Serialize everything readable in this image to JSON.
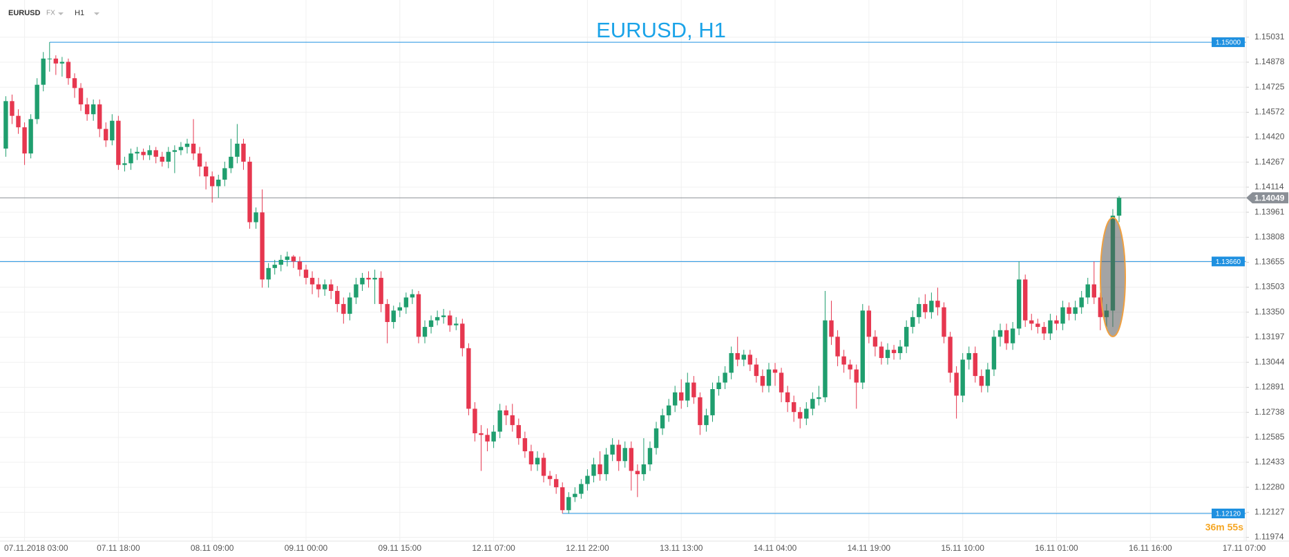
{
  "chart_data": {
    "type": "candlestick",
    "symbol": "EURUSD",
    "market": "FX",
    "timeframe": "H1",
    "title": "EURUSD, H1",
    "timer": "36m 55s",
    "up_color": "#1f9e6e",
    "down_color": "#e6374f",
    "level_color": "#1e90e0",
    "last_color": "#8a8f96",
    "categories": [
      null,
      null,
      null,
      "07.11.2018  03:00",
      null,
      null,
      null,
      null,
      null,
      null,
      null,
      null,
      null,
      null,
      null,
      null,
      null,
      null,
      "07.11  18:00",
      null,
      null,
      null,
      null,
      null,
      null,
      null,
      null,
      null,
      null,
      null,
      null,
      null,
      null,
      "08.11  09:00",
      null,
      null,
      null,
      null,
      null,
      null,
      null,
      null,
      null,
      null,
      null,
      null,
      null,
      null,
      "09.11  00:00",
      null,
      null,
      null,
      null,
      null,
      null,
      null,
      null,
      null,
      null,
      null,
      null,
      null,
      null,
      "09.11  15:00",
      null,
      null,
      null,
      null,
      null,
      null,
      null,
      null,
      null,
      null,
      null,
      null,
      null,
      null,
      "12.11  07:00",
      null,
      null,
      null,
      null,
      null,
      null,
      null,
      null,
      null,
      null,
      null,
      null,
      null,
      null,
      "12.11  22:00",
      null,
      null,
      null,
      null,
      null,
      null,
      null,
      null,
      null,
      null,
      null,
      null,
      null,
      null,
      "13.11  13:00",
      null,
      null,
      null,
      null,
      null,
      null,
      null,
      null,
      null,
      null,
      null,
      null,
      null,
      null,
      "14.11  04:00",
      null,
      null,
      null,
      null,
      null,
      null,
      null,
      null,
      null,
      null,
      null,
      null,
      null,
      null,
      "14.11  19:00",
      null,
      null,
      null,
      null,
      null,
      null,
      null,
      null,
      null,
      null,
      null,
      null,
      null,
      null,
      "15.11  10:00",
      null,
      null,
      null,
      null,
      null,
      null,
      null,
      null,
      null,
      null,
      null,
      null,
      null,
      null,
      "16.11  01:00",
      null,
      null,
      null,
      null,
      null,
      null,
      null,
      null,
      null,
      null,
      null,
      null,
      null,
      null,
      "16.11  16:00",
      null,
      null,
      null,
      null,
      null,
      null,
      null,
      null,
      null,
      null,
      null,
      null,
      null,
      null,
      "17.11  07:00"
    ],
    "open": [
      1.1435,
      1.1464,
      1.1455,
      1.1448,
      1.1432,
      1.1453,
      1.1474,
      1.149,
      1.149,
      1.1487,
      1.1488,
      1.1478,
      1.1472,
      1.1462,
      1.1456,
      1.1462,
      1.1447,
      1.144,
      1.1452,
      1.1425,
      1.1426,
      1.1432,
      1.1433,
      1.1431,
      1.1434,
      1.143,
      1.1427,
      1.1433,
      1.1434,
      1.1436,
      1.1438,
      1.1432,
      1.1424,
      1.1418,
      1.1412,
      1.1416,
      1.1423,
      1.143,
      1.1438,
      1.1427,
      1.139,
      1.1396,
      1.1355,
      1.1362,
      1.1364,
      1.1367,
      1.1369,
      1.1366,
      1.1361,
      1.1356,
      1.1352,
      1.1349,
      1.1352,
      1.1348,
      1.134,
      1.1334,
      1.1344,
      1.1352,
      1.1356,
      1.1355,
      1.1356,
      1.134,
      1.1329,
      1.1336,
      1.1338,
      1.1344,
      1.1346,
      1.132,
      1.1326,
      1.133,
      1.1332,
      1.1333,
      1.1327,
      1.1328,
      1.1313,
      1.1276,
      1.1261,
      1.126,
      1.1256,
      1.1262,
      1.1275,
      1.1272,
      1.1266,
      1.1258,
      1.125,
      1.1242,
      1.1246,
      1.1235,
      1.1233,
      1.1228,
      1.1214,
      1.1222,
      1.1224,
      1.123,
      1.1235,
      1.1242,
      1.1236,
      1.1248,
      1.1254,
      1.1244,
      1.1252,
      1.1238,
      1.1236,
      1.1242,
      1.1252,
      1.1264,
      1.1272,
      1.1278,
      1.1286,
      1.1281,
      1.1292,
      1.1283,
      1.1266,
      1.1272,
      1.1288,
      1.1292,
      1.1298,
      1.131,
      1.1306,
      1.1309,
      1.1303,
      1.1296,
      1.129,
      1.13,
      1.1298,
      1.1286,
      1.128,
      1.1274,
      1.127,
      1.1276,
      1.1282,
      1.1283,
      1.133,
      1.132,
      1.1308,
      1.1303,
      1.13,
      1.1292,
      1.1336,
      1.132,
      1.1314,
      1.1307,
      1.1312,
      1.131,
      1.1314,
      1.1326,
      1.1332,
      1.134,
      1.1335,
      1.1342,
      1.1338,
      1.132,
      1.1298,
      1.1284,
      1.1306,
      1.131,
      1.1296,
      1.129,
      1.13,
      1.132,
      1.1324,
      1.1316,
      1.1325,
      1.1355,
      1.133,
      1.1328,
      1.1326,
      1.1322,
      1.133,
      1.1328,
      1.1338,
      1.1334,
      1.1338,
      1.1344,
      1.1352,
      1.1344,
      1.1332,
      1.1336,
      1.1394,
      null,
      null,
      null,
      null,
      null,
      null,
      null,
      null,
      null,
      null,
      null,
      null,
      null,
      null,
      null,
      null,
      null,
      null,
      null,
      null
    ],
    "high": [
      1.1467,
      1.1468,
      1.1459,
      1.1451,
      1.1456,
      1.1478,
      1.1494,
      1.15,
      1.1492,
      1.1491,
      1.149,
      1.1481,
      1.1475,
      1.1466,
      1.1465,
      1.1465,
      1.1451,
      1.1456,
      1.1455,
      1.143,
      1.1435,
      1.1436,
      1.1435,
      1.1437,
      1.1436,
      1.1433,
      1.1436,
      1.1437,
      1.1439,
      1.1441,
      1.1453,
      1.1436,
      1.1427,
      1.1421,
      1.1419,
      1.1427,
      1.1441,
      1.145,
      1.1441,
      1.143,
      1.1399,
      1.141,
      1.1365,
      1.1367,
      1.137,
      1.1372,
      1.137,
      1.1369,
      1.1364,
      1.136,
      1.1356,
      1.1355,
      1.1355,
      1.1351,
      1.1344,
      1.1347,
      1.1356,
      1.1359,
      1.136,
      1.1361,
      1.136,
      1.1343,
      1.1339,
      1.1341,
      1.1347,
      1.1349,
      1.1348,
      1.133,
      1.1333,
      1.1336,
      1.1337,
      1.1336,
      1.1332,
      1.1331,
      1.1316,
      1.128,
      1.1266,
      1.1264,
      1.1266,
      1.1279,
      1.1278,
      1.1279,
      1.127,
      1.1262,
      1.1254,
      1.125,
      1.1249,
      1.1238,
      1.1236,
      1.1231,
      1.1225,
      1.1228,
      1.1233,
      1.1239,
      1.1246,
      1.125,
      1.1252,
      1.1258,
      1.1257,
      1.1256,
      1.1256,
      1.1242,
      1.1258,
      1.1256,
      1.1268,
      1.1276,
      1.1282,
      1.129,
      1.1294,
      1.1298,
      1.1296,
      1.1286,
      1.1276,
      1.1292,
      1.1296,
      1.1302,
      1.1314,
      1.132,
      1.1312,
      1.1312,
      1.1307,
      1.13,
      1.1304,
      1.1304,
      1.1301,
      1.129,
      1.1284,
      1.1277,
      1.128,
      1.1286,
      1.129,
      1.1348,
      1.1342,
      1.1324,
      1.1312,
      1.1306,
      1.1303,
      1.134,
      1.1339,
      1.1324,
      1.1317,
      1.1316,
      1.1315,
      1.1318,
      1.133,
      1.1336,
      1.1344,
      1.1346,
      1.1347,
      1.135,
      1.1341,
      1.1323,
      1.1302,
      1.131,
      1.1314,
      1.1314,
      1.13,
      1.1304,
      1.1324,
      1.1328,
      1.1328,
      1.1329,
      1.1366,
      1.1358,
      1.1334,
      1.1331,
      1.1329,
      1.1334,
      1.1333,
      1.1342,
      1.1341,
      1.1342,
      1.1348,
      1.1356,
      1.1366,
      1.1347,
      1.134,
      1.1398,
      1.1406,
      null,
      null,
      null,
      null,
      null,
      null,
      null,
      null,
      null,
      null,
      null,
      null,
      null,
      null,
      null,
      null,
      null,
      null,
      null,
      null
    ],
    "low": [
      1.143,
      1.145,
      1.1444,
      1.1425,
      1.1429,
      1.145,
      1.147,
      1.1482,
      1.148,
      1.1479,
      1.1474,
      1.1466,
      1.1458,
      1.1452,
      1.1452,
      1.1442,
      1.1436,
      1.1437,
      1.1422,
      1.1421,
      1.1422,
      1.1428,
      1.1428,
      1.1428,
      1.1426,
      1.1424,
      1.1423,
      1.142,
      1.1431,
      1.1432,
      1.1428,
      1.1418,
      1.141,
      1.1402,
      1.1405,
      1.1412,
      1.142,
      1.1426,
      1.1422,
      1.1386,
      1.1386,
      1.135,
      1.135,
      1.1358,
      1.136,
      1.1363,
      1.1362,
      1.1357,
      1.1352,
      1.1346,
      1.1344,
      1.1345,
      1.1343,
      1.1335,
      1.1328,
      1.133,
      1.134,
      1.1348,
      1.135,
      1.134,
      1.1335,
      1.1316,
      1.1325,
      1.1332,
      1.1334,
      1.134,
      1.1316,
      1.1316,
      1.1322,
      1.1327,
      1.1328,
      1.1323,
      1.1324,
      1.1308,
      1.1272,
      1.1256,
      1.1238,
      1.125,
      1.1252,
      1.1258,
      1.1266,
      1.1262,
      1.1254,
      1.1246,
      1.1238,
      1.1238,
      1.1231,
      1.1229,
      1.1224,
      1.1212,
      1.1212,
      1.1219,
      1.1221,
      1.1226,
      1.1231,
      1.1232,
      1.1232,
      1.1244,
      1.1238,
      1.124,
      1.1226,
      1.1222,
      1.1232,
      1.1238,
      1.1248,
      1.126,
      1.1268,
      1.1274,
      1.1276,
      1.1277,
      1.1279,
      1.126,
      1.1262,
      1.1268,
      1.1284,
      1.1288,
      1.1294,
      1.1302,
      1.1302,
      1.1299,
      1.1292,
      1.1286,
      1.1286,
      1.129,
      1.128,
      1.1274,
      1.1268,
      1.1264,
      1.1266,
      1.1272,
      1.1278,
      1.128,
      1.1315,
      1.1302,
      1.1298,
      1.1294,
      1.1276,
      1.1288,
      1.1316,
      1.1308,
      1.1303,
      1.1303,
      1.1306,
      1.1306,
      1.131,
      1.1322,
      1.1328,
      1.1331,
      1.1331,
      1.1333,
      1.1316,
      1.1292,
      1.127,
      1.128,
      1.13,
      1.1292,
      1.1286,
      1.1286,
      1.1296,
      1.1314,
      1.1312,
      1.1312,
      1.1321,
      1.1326,
      1.1324,
      1.1322,
      1.1318,
      1.1318,
      1.1324,
      1.1324,
      1.133,
      1.133,
      1.1334,
      1.134,
      1.134,
      1.1324,
      1.1326,
      1.1326,
      1.139,
      null,
      null,
      null,
      null,
      null,
      null,
      null,
      null,
      null,
      null,
      null,
      null,
      null,
      null,
      null,
      null,
      null,
      null,
      null,
      null
    ],
    "close": [
      1.1464,
      1.1455,
      1.1448,
      1.1432,
      1.1453,
      1.1474,
      1.149,
      1.149,
      1.1487,
      1.1488,
      1.1478,
      1.1472,
      1.1462,
      1.1456,
      1.1462,
      1.1447,
      1.144,
      1.1452,
      1.1425,
      1.1426,
      1.1432,
      1.1433,
      1.1431,
      1.1434,
      1.143,
      1.1427,
      1.1433,
      1.1434,
      1.1436,
      1.1438,
      1.1432,
      1.1424,
      1.1418,
      1.1412,
      1.1416,
      1.1423,
      1.143,
      1.1438,
      1.1427,
      1.139,
      1.1396,
      1.1355,
      1.1362,
      1.1364,
      1.1367,
      1.1369,
      1.1366,
      1.1361,
      1.1356,
      1.1352,
      1.1349,
      1.1352,
      1.1348,
      1.134,
      1.1334,
      1.1344,
      1.1352,
      1.1356,
      1.1355,
      1.1356,
      1.134,
      1.1329,
      1.1336,
      1.1338,
      1.1344,
      1.1346,
      1.132,
      1.1326,
      1.133,
      1.1332,
      1.1333,
      1.1327,
      1.1328,
      1.1313,
      1.1276,
      1.1261,
      1.126,
      1.1256,
      1.1262,
      1.1275,
      1.1272,
      1.1266,
      1.1258,
      1.125,
      1.1242,
      1.1246,
      1.1235,
      1.1233,
      1.1228,
      1.1214,
      1.1222,
      1.1224,
      1.123,
      1.1235,
      1.1242,
      1.1236,
      1.1248,
      1.1254,
      1.1244,
      1.1252,
      1.1238,
      1.1236,
      1.1242,
      1.1252,
      1.1264,
      1.1272,
      1.1278,
      1.1286,
      1.1281,
      1.1292,
      1.1283,
      1.1266,
      1.1272,
      1.1288,
      1.1292,
      1.1298,
      1.131,
      1.1306,
      1.1309,
      1.1303,
      1.1296,
      1.129,
      1.13,
      1.1298,
      1.1286,
      1.128,
      1.1274,
      1.127,
      1.1276,
      1.1282,
      1.1283,
      1.133,
      1.132,
      1.1308,
      1.1303,
      1.13,
      1.1292,
      1.1336,
      1.132,
      1.1314,
      1.1307,
      1.1312,
      1.131,
      1.1314,
      1.1326,
      1.1332,
      1.134,
      1.1335,
      1.1342,
      1.1338,
      1.132,
      1.1298,
      1.1284,
      1.1306,
      1.131,
      1.1296,
      1.129,
      1.13,
      1.132,
      1.1324,
      1.1316,
      1.1325,
      1.1355,
      1.133,
      1.1328,
      1.1326,
      1.1322,
      1.133,
      1.1328,
      1.1338,
      1.1334,
      1.1338,
      1.1344,
      1.1352,
      1.1344,
      1.1332,
      1.1336,
      1.1394,
      1.14049,
      null,
      null,
      null,
      null,
      null,
      null,
      null,
      null,
      null,
      null,
      null,
      null,
      null,
      null,
      null,
      null,
      null,
      null,
      null,
      null
    ],
    "ylim": [
      1.11951,
      1.15258
    ],
    "yticks": [
      1.15031,
      1.14878,
      1.14725,
      1.14572,
      {
        "value": 1.1442,
        "label": "1.14420"
      },
      1.14267,
      1.14114,
      1.13961,
      1.13808,
      1.13655,
      1.13503,
      {
        "value": 1.1335,
        "label": "1.13350"
      },
      1.13197,
      1.13044,
      1.12891,
      1.12738,
      1.12585,
      1.12433,
      {
        "value": 1.1228,
        "label": "1.12280"
      },
      1.12127,
      1.11974
    ],
    "grid": true,
    "levels": [
      {
        "value": 1.15,
        "label": "1.15000",
        "anchored": true
      },
      {
        "value": 1.1366,
        "label": "1.13660",
        "anchored": false
      },
      {
        "value": 1.1212,
        "label": "1.12120",
        "anchored": true
      }
    ],
    "last_price": 1.14049
  }
}
